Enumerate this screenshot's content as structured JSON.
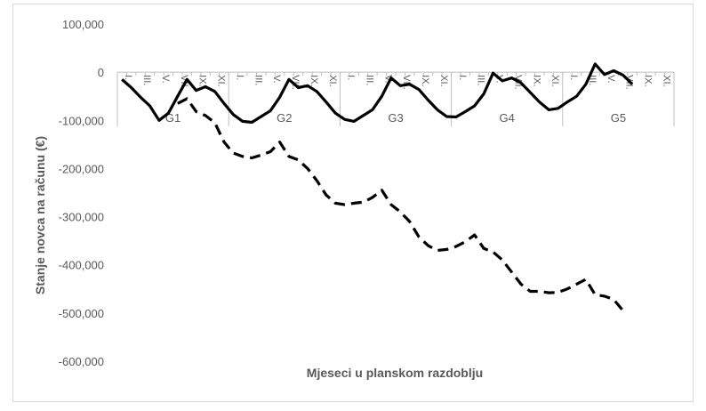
{
  "chart_data": {
    "type": "line",
    "title": "",
    "xlabel": "Mjeseci u planskom razdoblju",
    "ylabel": "Stanje novca na računu (€)",
    "ylim": [
      -600000,
      100000
    ],
    "yticks": [
      100000,
      0,
      -100000,
      -200000,
      -300000,
      -400000,
      -500000,
      -600000
    ],
    "ytick_labels": [
      "100,000",
      "0",
      "-100,000",
      "-200,000",
      "-300,000",
      "-400,000",
      "-500,000",
      "-600,000"
    ],
    "groups": [
      "G1",
      "G2",
      "G3",
      "G4",
      "G5"
    ],
    "month_labels": [
      "I.",
      "",
      "III.",
      "",
      "V.",
      "",
      "VII.",
      "",
      "IX.",
      "",
      "XI.",
      ""
    ],
    "grid": false,
    "legend": "none",
    "series": [
      {
        "style": "solid",
        "color": "#000000",
        "values": [
          -15000,
          -32000,
          -52000,
          -70000,
          -100000,
          -85000,
          -50000,
          -15000,
          -38000,
          -30000,
          -40000,
          -65000,
          -88000,
          -102000,
          -104000,
          -92000,
          -80000,
          -52000,
          -15000,
          -32000,
          -28000,
          -40000,
          -62000,
          -85000,
          -98000,
          -102000,
          -90000,
          -78000,
          -50000,
          -12000,
          -28000,
          -25000,
          -36000,
          -58000,
          -78000,
          -92000,
          -93000,
          -82000,
          -70000,
          -45000,
          -2000,
          -18000,
          -12000,
          -22000,
          -42000,
          -62000,
          -78000,
          -75000,
          -62000,
          -50000,
          -25000,
          17000,
          -5000,
          3000,
          -6000,
          -25000
        ]
      },
      {
        "style": "dashed",
        "color": "#000000",
        "values": [
          null,
          null,
          null,
          null,
          null,
          null,
          -65000,
          -55000,
          -82000,
          -90000,
          -105000,
          -145000,
          -168000,
          -175000,
          -178000,
          -172000,
          -165000,
          -145000,
          -175000,
          -182000,
          -200000,
          -225000,
          -255000,
          -272000,
          -275000,
          -272000,
          -270000,
          -260000,
          -245000,
          -275000,
          -290000,
          -310000,
          -342000,
          -360000,
          -370000,
          -368000,
          -362000,
          -352000,
          -338000,
          -366000,
          -373000,
          -390000,
          -415000,
          -440000,
          -455000,
          -455000,
          -458000,
          -457000,
          -450000,
          -440000,
          -430000,
          -462000,
          -465000,
          -472000,
          -495000
        ]
      }
    ]
  }
}
